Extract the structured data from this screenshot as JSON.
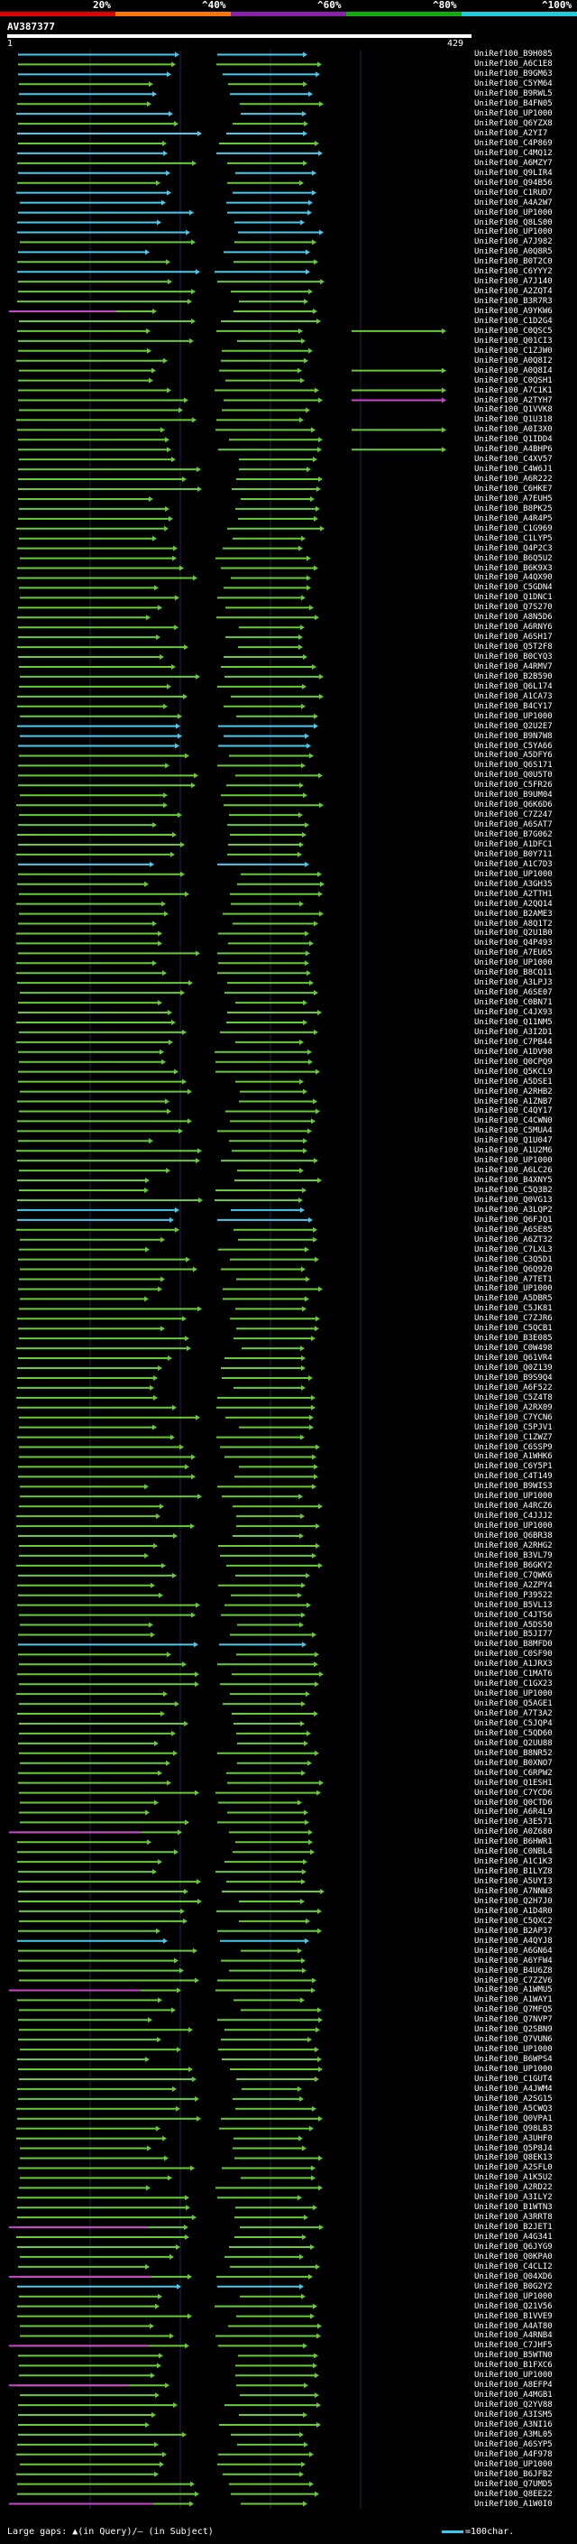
{
  "scale": {
    "labels": [
      {
        "text": "20%",
        "pos": 0.2
      },
      {
        "text": "^40%",
        "pos": 0.4
      },
      {
        "text": "^60%",
        "pos": 0.6
      },
      {
        "text": "^80%",
        "pos": 0.8
      },
      {
        "text": "^100%",
        "pos": 1.0
      }
    ],
    "bands": [
      "#dd0000",
      "#ff7700",
      "#8822aa",
      "#11aa11",
      "#22ccdd"
    ]
  },
  "query": {
    "name": "AV387377",
    "start": "1",
    "end": "429"
  },
  "colors": {
    "green": "#66cc33",
    "cyan": "#44ccee",
    "magenta": "#cc44cc",
    "grid": "#222255"
  },
  "hits": [
    "UniRef100_B9H085",
    "UniRef100_A6C1E8",
    "UniRef100_B9GM63",
    "UniRef100_C5YM64",
    "UniRef100_B9RWL5",
    "UniRef100_B4FN05",
    "UniRef100_UP1000",
    "UniRef100_Q6YZX8",
    "UniRef100_A2YI7",
    "UniRef100_C4P869",
    "UniRef100_C4MQ12",
    "UniRef100_A6MZY7",
    "UniRef100_Q9LIR4",
    "UniRef100_Q94B56",
    "UniRef100_C1RUD7",
    "UniRef100_A4A2W7",
    "UniRef100_UP1000",
    "UniRef100_Q8LS00",
    "UniRef100_UP1000",
    "UniRef100_A7J982",
    "UniRef100_A0Q8R5",
    "UniRef100_B0T2C0",
    "UniRef100_C6YYY2",
    "UniRef100_A7J140",
    "UniRef100_A2ZQT4",
    "UniRef100_B3R7R3",
    "UniRef100_A9YKW6",
    "UniRef100_C1D2G4",
    "UniRef100_C0QSC5",
    "UniRef100_Q01CI3",
    "UniRef100_C1ZJW0",
    "UniRef100_A0Q8I2",
    "UniRef100_A0Q8I4",
    "UniRef100_C0QSH1",
    "UniRef100_A7C1K1",
    "UniRef100_A2TYH7",
    "UniRef100_Q1VVK8",
    "UniRef100_Q1U318",
    "UniRef100_A0I3X0",
    "UniRef100_Q1IDD4",
    "UniRef100_A4BHP6",
    "UniRef100_C4XV57",
    "UniRef100_C4W6J1",
    "UniRef100_A6R222",
    "UniRef100_C6HKE7",
    "UniRef100_A7EUH5",
    "UniRef100_B8PK25",
    "UniRef100_A4R4P5",
    "UniRef100_C1G969",
    "UniRef100_C1LYP5",
    "UniRef100_Q4P2C3",
    "UniRef100_B6Q5U2",
    "UniRef100_B6K9X3",
    "UniRef100_A4QX90",
    "UniRef100_C5GDN4",
    "UniRef100_Q1DNC1",
    "UniRef100_Q7S270",
    "UniRef100_A8N5D6",
    "UniRef100_A6RNY6",
    "UniRef100_A6SH17",
    "UniRef100_Q5T2F8",
    "UniRef100_B0CYQ3",
    "UniRef100_A4RMV7",
    "UniRef100_B2B590",
    "UniRef100_Q6L174",
    "UniRef100_A1CA73",
    "UniRef100_B4CY17",
    "UniRef100_UP1000",
    "UniRef100_Q2U2E7",
    "UniRef100_B9N7W8",
    "UniRef100_C5YA66",
    "UniRef100_A5DFY6",
    "UniRef100_Q6S171",
    "UniRef100_Q0U5T0",
    "UniRef100_C5FR26",
    "UniRef100_B9UM04",
    "UniRef100_Q6K6D6",
    "UniRef100_C7Z247",
    "UniRef100_A6SAT7",
    "UniRef100_B7G062",
    "UniRef100_A1DFC1",
    "UniRef100_B0Y711",
    "UniRef100_A1C7D3",
    "UniRef100_UP1000",
    "UniRef100_A3GH35",
    "UniRef100_A2TTH1",
    "UniRef100_A2QQ14",
    "UniRef100_B2AME3",
    "UniRef100_A8Q1T2",
    "UniRef100_Q2U1B0",
    "UniRef100_Q4P493",
    "UniRef100_A7EU65",
    "UniRef100_UP1000",
    "UniRef100_B8CQ11",
    "UniRef100_A3LPJ3",
    "UniRef100_A6SE07",
    "UniRef100_C0BN71",
    "UniRef100_C4JX93",
    "UniRef100_Q11NM5",
    "UniRef100_A3I2D1",
    "UniRef100_C7PB44",
    "UniRef100_A1DV98",
    "UniRef100_Q0CPQ9",
    "UniRef100_Q5KCL9",
    "UniRef100_A5DSE1",
    "UniRef100_A2RHB2",
    "UniRef100_A1ZNB7",
    "UniRef100_C4QY17",
    "UniRef100_C4CWN0",
    "UniRef100_C5MUA4",
    "UniRef100_Q1U047",
    "UniRef100_A1U2M6",
    "UniRef100_UP1000",
    "UniRef100_A6LC26",
    "UniRef100_B4XNY5",
    "UniRef100_C5Q3B2",
    "UniRef100_Q0VG13",
    "UniRef100_A3LQP2",
    "UniRef100_Q6FJQ1",
    "UniRef100_A6SE85",
    "UniRef100_A6ZT32",
    "UniRef100_C7LXL3",
    "UniRef100_C3Q5D1",
    "UniRef100_Q6Q920",
    "UniRef100_A7TET1",
    "UniRef100_UP1000",
    "UniRef100_A5DBR5",
    "UniRef100_C5JK81",
    "UniRef100_C7ZJR6",
    "UniRef100_C5QCB1",
    "UniRef100_B3E085",
    "UniRef100_C0W498",
    "UniRef100_Q61VR4",
    "UniRef100_Q0Z139",
    "UniRef100_B9S9Q4",
    "UniRef100_A6F522",
    "UniRef100_C5Z4T8",
    "UniRef100_A2RX09",
    "UniRef100_C7YCN6",
    "UniRef100_C5PJV1",
    "UniRef100_C1ZWZ7",
    "UniRef100_C6SSP9",
    "UniRef100_A1WHK6",
    "UniRef100_C6Y5P1",
    "UniRef100_C4T149",
    "UniRef100_B9WIS3",
    "UniRef100_UP1000",
    "UniRef100_A4RCZ6",
    "UniRef100_C4JJJ2",
    "UniRef100_UP1000",
    "UniRef100_Q6BR38",
    "UniRef100_A2RHG2",
    "UniRef100_B3VL79",
    "UniRef100_B6GKY2",
    "UniRef100_C7QWK6",
    "UniRef100_A2ZPY4",
    "UniRef100_P39522",
    "UniRef100_B5VL13",
    "UniRef100_C4JTS6",
    "UniRef100_A5DS50",
    "UniRef100_B5JI77",
    "UniRef100_B8MFD0",
    "UniRef100_C0SF90",
    "UniRef100_A1JRX3",
    "UniRef100_C1MAT6",
    "UniRef100_C1GX23",
    "UniRef100_UP1000",
    "UniRef100_Q5AGE1",
    "UniRef100_A7T3A2",
    "UniRef100_C5JQP4",
    "UniRef100_C5QD60",
    "UniRef100_Q2UU88",
    "UniRef100_B8NR52",
    "UniRef100_B0XNO7",
    "UniRef100_C6RPW2",
    "UniRef100_Q1ESH1",
    "UniRef100_C7YCD6",
    "UniRef100_Q0CTD6",
    "UniRef100_A6R4L9",
    "UniRef100_A3E571",
    "UniRef100_A0Z680",
    "UniRef100_B6HWR1",
    "UniRef100_C0NBL4",
    "UniRef100_A1C1K3",
    "UniRef100_B1LYZ8",
    "UniRef100_A5UYI3",
    "UniRef100_A7NNW3",
    "UniRef100_Q2H7J0",
    "UniRef100_A1D4R0",
    "UniRef100_C5QXC2",
    "UniRef100_B2AP37",
    "UniRef100_A4QYJ8",
    "UniRef100_A6GN64",
    "UniRef100_A6YFW4",
    "UniRef100_B4U6Z8",
    "UniRef100_C7ZZV6",
    "UniRef100_A1WMU5",
    "UniRef100_A1WAY1",
    "UniRef100_Q7MFQ5",
    "UniRef100_Q7NVP7",
    "UniRef100_Q2SBN9",
    "UniRef100_Q7VUN6",
    "UniRef100_UP1000",
    "UniRef100_B6WPS4",
    "UniRef100_UP1000",
    "UniRef100_C1GUT4",
    "UniRef100_A4JWM4",
    "UniRef100_A2SG15",
    "UniRef100_A5CWQ3",
    "UniRef100_Q0VPA1",
    "UniRef100_Q98LB3",
    "UniRef100_A3UHF0",
    "UniRef100_Q5P8J4",
    "UniRef100_Q8EK13",
    "UniRef100_A2SFL0",
    "UniRef100_A1K5U2",
    "UniRef100_A2RD22",
    "UniRef100_A3ILY2",
    "UniRef100_B1WTN3",
    "UniRef100_A3RRT8",
    "UniRef100_B2JET1",
    "UniRef100_A4G341",
    "UniRef100_Q6JYG9",
    "UniRef100_Q0KPA0",
    "UniRef100_C4CLI2",
    "UniRef100_Q04XD6",
    "UniRef100_B0G2Y2",
    "UniRef100_UP1000",
    "UniRef100_Q21V56",
    "UniRef100_B1VVE9",
    "UniRef100_A4AT80",
    "UniRef100_A4RNB4",
    "UniRef100_C7JHF5",
    "UniRef100_B5WTN0",
    "UniRef100_B1FXC6",
    "UniRef100_UP1000",
    "UniRef100_A8EFP4",
    "UniRef100_A4MGB1",
    "UniRef100_Q2YV88",
    "UniRef100_A3ISM5",
    "UniRef100_A3NI16",
    "UniRef100_A3ML05",
    "UniRef100_A6SYP5",
    "UniRef100_A4F978",
    "UniRef100_UP1000",
    "UniRef100_B6JFB2",
    "UniRef100_Q7UMD5",
    "UniRef100_Q8EE22",
    "UniRef100_A1W0I0"
  ],
  "legend": {
    "text": "Large gaps: ▲(in Query)/– (in Subject)",
    "key": "=100char."
  }
}
